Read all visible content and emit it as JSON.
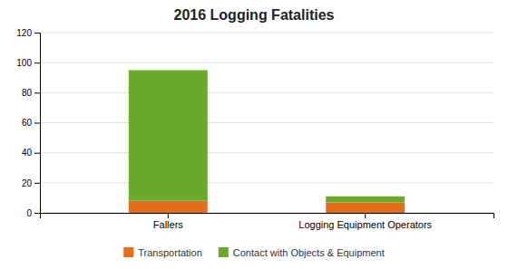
{
  "chart_data": {
    "type": "bar",
    "title": "2016 Logging Fatalities",
    "categories": [
      "Fallers",
      "Logging Equipment Operators"
    ],
    "stacked": true,
    "series": [
      {
        "name": "Transportation",
        "color": "#e36f1e",
        "values": [
          8,
          7
        ]
      },
      {
        "name": "Contact with Objects & Equipment",
        "color": "#6aaa2b",
        "values": [
          87,
          4
        ]
      }
    ],
    "ylim": [
      0,
      120
    ],
    "yticks": [
      0,
      20,
      40,
      60,
      80,
      100,
      120
    ],
    "grid": true,
    "legend": "bottom"
  }
}
